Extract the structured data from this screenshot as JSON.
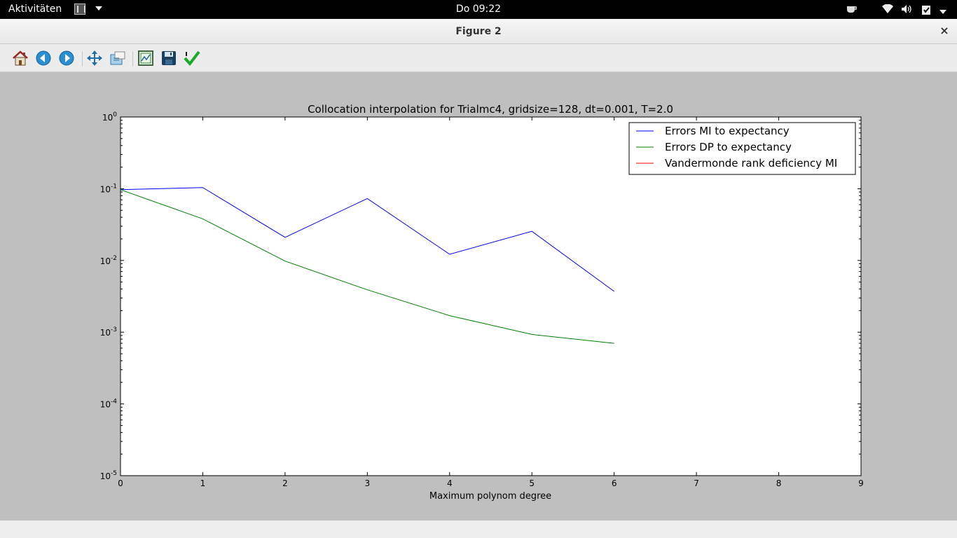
{
  "topbar": {
    "activities": "Aktivitäten",
    "clock": "Do 09:22",
    "icons": [
      "app-icon",
      "coffee-icon",
      "wifi-icon",
      "volume-icon",
      "clipboard-check-icon",
      "chevron-down-icon"
    ]
  },
  "window": {
    "title": "Figure 2",
    "close_label": "×"
  },
  "toolbar": {
    "buttons": [
      "home",
      "back",
      "forward",
      "pan",
      "zoom",
      "configure-subplots",
      "save",
      "edit-axis"
    ]
  },
  "colors": {
    "blue": "#0000ff",
    "green": "#008000",
    "red": "#ff0000",
    "canvas": "#bfbfbf"
  },
  "chart_data": {
    "type": "line",
    "title": "Collocation interpolation for Trialmc4, gridsize=128, dt=0.001, T=2.0",
    "xlabel": "Maximum polynom degree",
    "ylabel": "",
    "xlim": [
      0,
      9
    ],
    "ylim": [
      1e-05,
      1
    ],
    "yscale": "log",
    "x_ticks": [
      "0",
      "1",
      "2",
      "3",
      "4",
      "5",
      "6",
      "7",
      "8",
      "9"
    ],
    "y_ticks": [
      {
        "base": "10",
        "exp": "0"
      },
      {
        "base": "10",
        "exp": "-1"
      },
      {
        "base": "10",
        "exp": "-2"
      },
      {
        "base": "10",
        "exp": "-3"
      },
      {
        "base": "10",
        "exp": "-4"
      },
      {
        "base": "10",
        "exp": "-5"
      }
    ],
    "legend_position": "top-right",
    "series": [
      {
        "name": "Errors MI to expectancy",
        "color": "#0000ff",
        "x": [
          0,
          1,
          2,
          3,
          4,
          5,
          6
        ],
        "y": [
          0.097,
          0.104,
          0.021,
          0.073,
          0.0122,
          0.0255,
          0.0037
        ]
      },
      {
        "name": "Errors DP to expectancy",
        "color": "#008000",
        "x": [
          0,
          1,
          2,
          3,
          4,
          5,
          6
        ],
        "y": [
          0.097,
          0.038,
          0.0098,
          0.0039,
          0.0017,
          0.00093,
          0.0007
        ]
      },
      {
        "name": "Vandermonde rank deficiency MI",
        "color": "#ff0000",
        "x": [],
        "y": []
      }
    ]
  }
}
